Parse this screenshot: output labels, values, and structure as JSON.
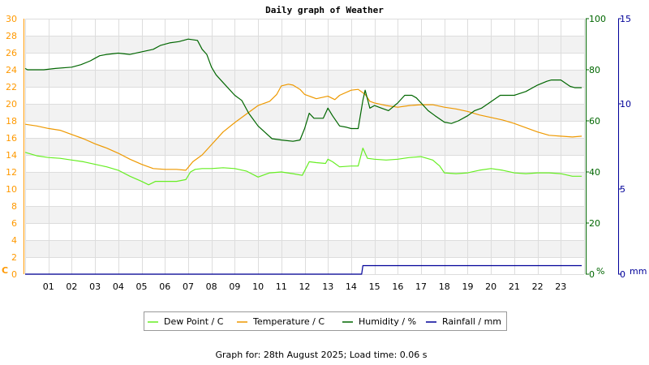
{
  "chart_data": {
    "type": "line",
    "title": "Daily graph of Weather",
    "x_ticks": [
      "01",
      "02",
      "03",
      "04",
      "05",
      "06",
      "07",
      "08",
      "09",
      "10",
      "11",
      "12",
      "13",
      "14",
      "15",
      "16",
      "17",
      "18",
      "19",
      "20",
      "21",
      "22",
      "23"
    ],
    "xlim": [
      0,
      24
    ],
    "left_axis": {
      "unit_label": "C",
      "ticks": [
        "0",
        "2",
        "4",
        "6",
        "8",
        "10",
        "12",
        "14",
        "16",
        "18",
        "20",
        "22",
        "24",
        "26",
        "28",
        "30"
      ],
      "ylim": [
        0,
        30
      ],
      "color": "#ff9900"
    },
    "humidity_axis": {
      "unit_label": "%",
      "ticks": [
        "0",
        "20",
        "40",
        "60",
        "80",
        "100"
      ],
      "ylim": [
        0,
        100
      ],
      "color": "#006600"
    },
    "rainfall_axis": {
      "unit_label": "mm",
      "ticks": [
        "0",
        "5",
        "10",
        "15"
      ],
      "ylim": [
        0,
        15
      ],
      "color": "#000099"
    },
    "grid": true,
    "legend_position": "bottom",
    "series": [
      {
        "name": "Dew Point / C",
        "axis": "left",
        "color": "#66ee22",
        "points": [
          [
            0,
            14.3
          ],
          [
            0.5,
            13.9
          ],
          [
            1,
            13.7
          ],
          [
            1.5,
            13.6
          ],
          [
            2,
            13.4
          ],
          [
            2.5,
            13.2
          ],
          [
            3,
            12.9
          ],
          [
            3.5,
            12.6
          ],
          [
            4,
            12.2
          ],
          [
            4.5,
            11.5
          ],
          [
            5,
            10.9
          ],
          [
            5.3,
            10.5
          ],
          [
            5.6,
            10.9
          ],
          [
            6,
            10.9
          ],
          [
            6.5,
            10.9
          ],
          [
            6.9,
            11.1
          ],
          [
            7.1,
            12.0
          ],
          [
            7.3,
            12.3
          ],
          [
            7.6,
            12.4
          ],
          [
            8,
            12.4
          ],
          [
            8.5,
            12.5
          ],
          [
            9,
            12.4
          ],
          [
            9.5,
            12.1
          ],
          [
            10,
            11.4
          ],
          [
            10.5,
            11.9
          ],
          [
            11,
            12.0
          ],
          [
            11.5,
            11.8
          ],
          [
            11.9,
            11.6
          ],
          [
            12.2,
            13.2
          ],
          [
            12.5,
            13.1
          ],
          [
            12.9,
            13.0
          ],
          [
            13,
            13.5
          ],
          [
            13.2,
            13.2
          ],
          [
            13.5,
            12.6
          ],
          [
            14,
            12.7
          ],
          [
            14.3,
            12.7
          ],
          [
            14.5,
            14.8
          ],
          [
            14.7,
            13.6
          ],
          [
            15,
            13.5
          ],
          [
            15.5,
            13.4
          ],
          [
            16,
            13.5
          ],
          [
            16.5,
            13.7
          ],
          [
            17,
            13.8
          ],
          [
            17.5,
            13.4
          ],
          [
            17.8,
            12.7
          ],
          [
            18,
            11.9
          ],
          [
            18.5,
            11.8
          ],
          [
            19,
            11.9
          ],
          [
            19.5,
            12.2
          ],
          [
            20,
            12.4
          ],
          [
            20.5,
            12.2
          ],
          [
            21,
            11.9
          ],
          [
            21.5,
            11.8
          ],
          [
            22,
            11.9
          ],
          [
            22.5,
            11.9
          ],
          [
            23,
            11.8
          ],
          [
            23.5,
            11.5
          ],
          [
            23.9,
            11.5
          ]
        ]
      },
      {
        "name": "Temperature / C",
        "axis": "left",
        "color": "#ee9900",
        "points": [
          [
            0,
            17.6
          ],
          [
            0.5,
            17.4
          ],
          [
            1,
            17.1
          ],
          [
            1.5,
            16.9
          ],
          [
            2,
            16.4
          ],
          [
            2.5,
            15.9
          ],
          [
            3,
            15.3
          ],
          [
            3.5,
            14.8
          ],
          [
            4,
            14.2
          ],
          [
            4.5,
            13.5
          ],
          [
            5,
            12.9
          ],
          [
            5.5,
            12.4
          ],
          [
            6,
            12.3
          ],
          [
            6.5,
            12.3
          ],
          [
            6.9,
            12.2
          ],
          [
            7.2,
            13.2
          ],
          [
            7.6,
            14.0
          ],
          [
            8,
            15.2
          ],
          [
            8.5,
            16.7
          ],
          [
            9,
            17.8
          ],
          [
            9.5,
            18.8
          ],
          [
            10,
            19.8
          ],
          [
            10.5,
            20.3
          ],
          [
            10.8,
            21.1
          ],
          [
            11,
            22.1
          ],
          [
            11.3,
            22.3
          ],
          [
            11.5,
            22.2
          ],
          [
            11.8,
            21.7
          ],
          [
            12,
            21.1
          ],
          [
            12.5,
            20.6
          ],
          [
            13,
            20.9
          ],
          [
            13.3,
            20.5
          ],
          [
            13.5,
            21.0
          ],
          [
            14,
            21.6
          ],
          [
            14.3,
            21.7
          ],
          [
            14.6,
            21.1
          ],
          [
            14.8,
            20.3
          ],
          [
            15,
            20.1
          ],
          [
            15.5,
            19.8
          ],
          [
            16,
            19.6
          ],
          [
            16.5,
            19.8
          ],
          [
            17,
            19.9
          ],
          [
            17.5,
            19.9
          ],
          [
            18,
            19.6
          ],
          [
            18.5,
            19.4
          ],
          [
            19,
            19.1
          ],
          [
            19.5,
            18.7
          ],
          [
            20,
            18.4
          ],
          [
            20.5,
            18.1
          ],
          [
            21,
            17.7
          ],
          [
            21.5,
            17.2
          ],
          [
            22,
            16.7
          ],
          [
            22.5,
            16.3
          ],
          [
            23,
            16.2
          ],
          [
            23.5,
            16.1
          ],
          [
            23.9,
            16.2
          ]
        ]
      },
      {
        "name": "Humidity / %",
        "axis": "humidity",
        "color": "#006600",
        "points": [
          [
            0,
            80.5
          ],
          [
            0.1,
            80.0
          ],
          [
            0.8,
            80.0
          ],
          [
            1.3,
            80.5
          ],
          [
            2,
            81.0
          ],
          [
            2.4,
            82.0
          ],
          [
            2.8,
            83.5
          ],
          [
            3,
            84.5
          ],
          [
            3.2,
            85.5
          ],
          [
            3.5,
            86.0
          ],
          [
            4,
            86.5
          ],
          [
            4.5,
            86.0
          ],
          [
            5,
            87.0
          ],
          [
            5.5,
            88.0
          ],
          [
            5.8,
            89.5
          ],
          [
            6.2,
            90.5
          ],
          [
            6.6,
            91.0
          ],
          [
            7,
            92.0
          ],
          [
            7.4,
            91.5
          ],
          [
            7.6,
            88.0
          ],
          [
            7.8,
            86.0
          ],
          [
            8,
            81.0
          ],
          [
            8.2,
            78.0
          ],
          [
            8.5,
            75.0
          ],
          [
            9,
            70.0
          ],
          [
            9.3,
            68.0
          ],
          [
            9.6,
            63.0
          ],
          [
            10,
            58.0
          ],
          [
            10.3,
            55.5
          ],
          [
            10.6,
            53.0
          ],
          [
            11,
            52.5
          ],
          [
            11.5,
            52.0
          ],
          [
            11.8,
            52.5
          ],
          [
            12,
            57.0
          ],
          [
            12.2,
            63.0
          ],
          [
            12.4,
            61.0
          ],
          [
            12.8,
            61.0
          ],
          [
            13,
            65.0
          ],
          [
            13.2,
            62.0
          ],
          [
            13.5,
            58.0
          ],
          [
            13.8,
            57.5
          ],
          [
            14,
            57.0
          ],
          [
            14.3,
            57.0
          ],
          [
            14.5,
            68.0
          ],
          [
            14.6,
            72.0
          ],
          [
            14.8,
            65.0
          ],
          [
            15,
            66.0
          ],
          [
            15.3,
            65.0
          ],
          [
            15.6,
            64.0
          ],
          [
            16,
            67.0
          ],
          [
            16.3,
            70.0
          ],
          [
            16.6,
            70.0
          ],
          [
            16.8,
            69.0
          ],
          [
            17,
            67.0
          ],
          [
            17.3,
            64.0
          ],
          [
            17.6,
            62.0
          ],
          [
            18,
            59.5
          ],
          [
            18.3,
            59.0
          ],
          [
            18.6,
            60.0
          ],
          [
            19,
            62.0
          ],
          [
            19.3,
            64.0
          ],
          [
            19.6,
            65.0
          ],
          [
            20,
            67.5
          ],
          [
            20.4,
            70.0
          ],
          [
            20.8,
            70.0
          ],
          [
            21,
            70.0
          ],
          [
            21.5,
            71.5
          ],
          [
            22,
            74.0
          ],
          [
            22.4,
            75.5
          ],
          [
            22.6,
            76.0
          ],
          [
            23,
            76.0
          ],
          [
            23.4,
            73.5
          ],
          [
            23.6,
            73.0
          ],
          [
            23.9,
            73.0
          ]
        ]
      },
      {
        "name": "Rainfall / mm",
        "axis": "rainfall",
        "color": "#000099",
        "points": [
          [
            0,
            0
          ],
          [
            14.45,
            0
          ],
          [
            14.5,
            0.5
          ],
          [
            23.9,
            0.5
          ]
        ]
      }
    ],
    "footer": "Graph for: 28th August 2025; Load time: 0.06 s"
  }
}
